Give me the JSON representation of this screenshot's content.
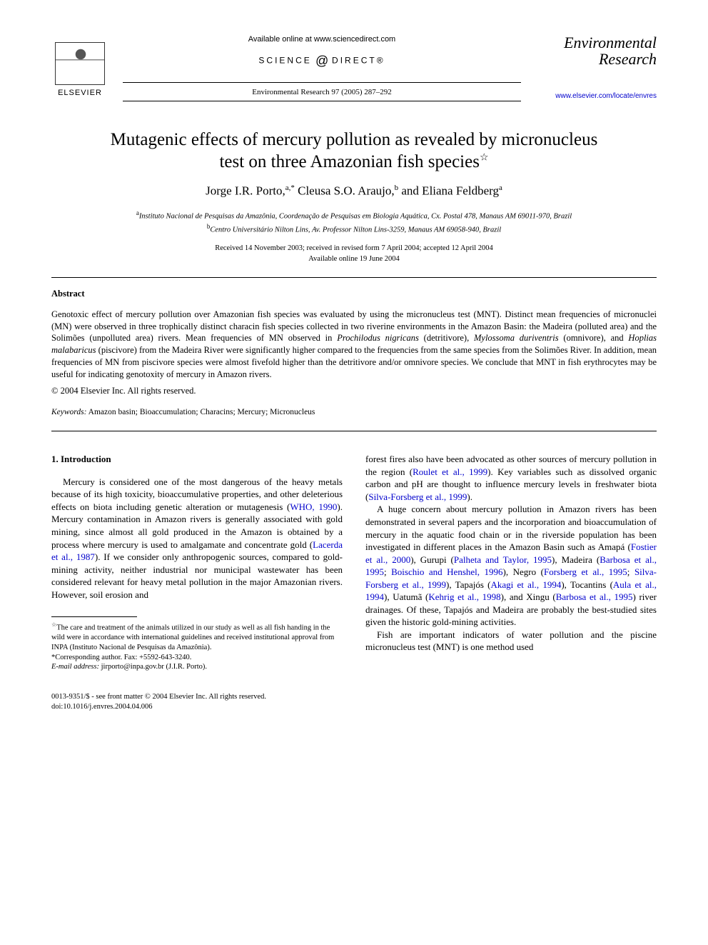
{
  "header": {
    "publisher_name": "ELSEVIER",
    "available_text": "Available online at www.sciencedirect.com",
    "science_direct": "SCIENCE",
    "science_direct2": "DIRECT®",
    "journal_ref": "Environmental Research 97 (2005) 287–292",
    "journal_title_line1": "Environmental",
    "journal_title_line2": "Research",
    "journal_url": "www.elsevier.com/locate/envres"
  },
  "article": {
    "title_line1": "Mutagenic effects of mercury pollution as revealed by micronucleus",
    "title_line2": "test on three Amazonian fish species",
    "star": "☆",
    "authors_html": "Jorge I.R. Porto,",
    "author1_sup": "a,*",
    "author2": " Cleusa S.O. Araujo,",
    "author2_sup": "b",
    "author3": " and Eliana Feldberg",
    "author3_sup": "a",
    "affil_a_sup": "a",
    "affil_a": "Instituto Nacional de Pesquisas da Amazônia, Coordenação de Pesquisas em Biologia Aquática, Cx. Postal 478, Manaus AM 69011-970, Brazil",
    "affil_b_sup": "b",
    "affil_b": "Centro Universitário Nilton Lins, Av. Professor Nilton Lins-3259, Manaus AM 69058-940, Brazil",
    "dates_line1": "Received 14 November 2003; received in revised form 7 April 2004; accepted 12 April 2004",
    "dates_line2": "Available online 19 June 2004"
  },
  "abstract": {
    "heading": "Abstract",
    "body": "Genotoxic effect of mercury pollution over Amazonian fish species was evaluated by using the micronucleus test (MNT). Distinct mean frequencies of micronuclei (MN) were observed in three trophically distinct characin fish species collected in two riverine environments in the Amazon Basin: the Madeira (polluted area) and the Solimões (unpolluted area) rivers. Mean frequencies of MN observed in Prochilodus nigricans (detritivore), Mylossoma duriventris (omnivore), and Hoplias malabaricus (piscivore) from the Madeira River were significantly higher compared to the frequencies from the same species from the Solimões River. In addition, mean frequencies of MN from piscivore species were almost fivefold higher than the detritivore and/or omnivore species. We conclude that MNT in fish erythrocytes may be useful for indicating genotoxity of mercury in Amazon rivers.",
    "copyright": "© 2004 Elsevier Inc. All rights reserved.",
    "keywords_label": "Keywords:",
    "keywords": " Amazon basin; Bioaccumulation; Characins; Mercury; Micronucleus"
  },
  "intro": {
    "heading": "1. Introduction",
    "left_p1a": "Mercury is considered one of the most dangerous of the heavy metals because of its high toxicity, bioaccumulative properties, and other deleterious effects on biota including genetic alteration or mutagenesis (",
    "ref_who": "WHO, 1990",
    "left_p1b": "). Mercury contamination in Amazon rivers is generally associated with gold mining, since almost all gold produced in the Amazon is obtained by a process where mercury is used to amalgamate and concentrate gold (",
    "ref_lacerda": "Lacerda et al., 1987",
    "left_p1c": "). If we consider only anthropogenic sources, compared to gold-mining activity, neither industrial nor municipal wastewater has been considered relevant for heavy metal pollution in the major Amazonian rivers. However, soil erosion and",
    "right_p1a": "forest fires also have been advocated as other sources of mercury pollution in the region (",
    "ref_roulet": "Roulet et al., 1999",
    "right_p1b": "). Key variables such as dissolved organic carbon and pH are thought to influence mercury levels in freshwater biota (",
    "ref_silva": "Silva-Forsberg et al., 1999",
    "right_p1c": ").",
    "right_p2a": "A huge concern about mercury pollution in Amazon rivers has been demonstrated in several papers and the incorporation and bioaccumulation of mercury in the aquatic food chain or in the riverside population has been investigated in different places in the Amazon Basin such as Amapá (",
    "ref_fostier": "Fostier et al., 2000",
    "right_p2b": "), Gurupi (",
    "ref_palheta": "Palheta and Taylor, 1995",
    "right_p2c": "), Madeira (",
    "ref_barbosa1": "Barbosa et al., 1995",
    "right_p2d": "; ",
    "ref_boischio": "Boischio and Henshel, 1996",
    "right_p2e": "), Negro (",
    "ref_forsberg": "Forsberg et al., 1995",
    "right_p2f": "; ",
    "ref_silva2": "Silva-Forsberg et al., 1999",
    "right_p2g": "), Tapajós (",
    "ref_akagi": "Akagi et al., 1994",
    "right_p2h": "), Tocantins (",
    "ref_aula": "Aula et al., 1994",
    "right_p2i": "), Uatumã (",
    "ref_kehrig": "Kehrig et al., 1998",
    "right_p2j": "), and Xingu (",
    "ref_barbosa2": "Barbosa et al., 1995",
    "right_p2k": ") river drainages. Of these, Tapajós and Madeira are probably the best-studied sites given the historic gold-mining activities.",
    "right_p3": "Fish are important indicators of water pollution and the piscine micronucleus test (MNT) is one method used"
  },
  "footnotes": {
    "star_sup": "☆",
    "star_text": "The care and treatment of the animals utilized in our study as well as all fish handing in the wild were in accordance with international guidelines and received institutional approval from INPA (Instituto Nacional de Pesquisas da Amazônia).",
    "corr_sup": "*",
    "corr_text": "Corresponding author. Fax: +5592-643-3240.",
    "email_label": "E-mail address:",
    "email": " jirporto@inpa.gov.br (J.I.R. Porto)."
  },
  "footer": {
    "line1": "0013-9351/$ - see front matter © 2004 Elsevier Inc. All rights reserved.",
    "line2": "doi:10.1016/j.envres.2004.04.006"
  },
  "colors": {
    "link": "#0000cc",
    "text": "#000000",
    "bg": "#ffffff"
  }
}
